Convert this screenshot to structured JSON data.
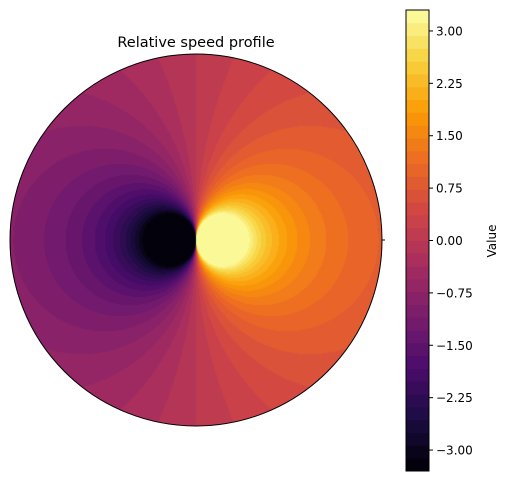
{
  "chart_data": {
    "type": "heatmap",
    "subtype": "polar-filled-contour",
    "title": "Relative speed profile",
    "colorbar": {
      "label": "Value",
      "colormap": "inferno",
      "range": [
        -3.3,
        3.3
      ],
      "ticks": [
        {
          "value": 3.0,
          "label": "3.00"
        },
        {
          "value": 2.25,
          "label": "2.25"
        },
        {
          "value": 1.5,
          "label": "1.50"
        },
        {
          "value": 0.75,
          "label": "0.75"
        },
        {
          "value": 0.0,
          "label": "0.00"
        },
        {
          "value": -0.75,
          "label": "−0.75"
        },
        {
          "value": -1.5,
          "label": "−1.50"
        },
        {
          "value": -2.25,
          "label": "−2.25"
        },
        {
          "value": -3.0,
          "label": "−3.00"
        }
      ]
    },
    "field": {
      "description": "value = r * cos(theta) with strong concentration toward the center; positive toward theta = 0 (right), negative toward theta = pi (left)",
      "value_at_right_edge": 0.9,
      "value_at_left_edge": -0.9,
      "value_near_center_right": 3.3,
      "value_near_center_left": -3.3
    },
    "contour_levels": 36
  },
  "colors": {
    "inferno": [
      "#000004",
      "#1b0c41",
      "#4a0c6b",
      "#781c6d",
      "#a52c60",
      "#cf4446",
      "#ed6925",
      "#fb9b06",
      "#f7d13d",
      "#fcffa4"
    ]
  }
}
